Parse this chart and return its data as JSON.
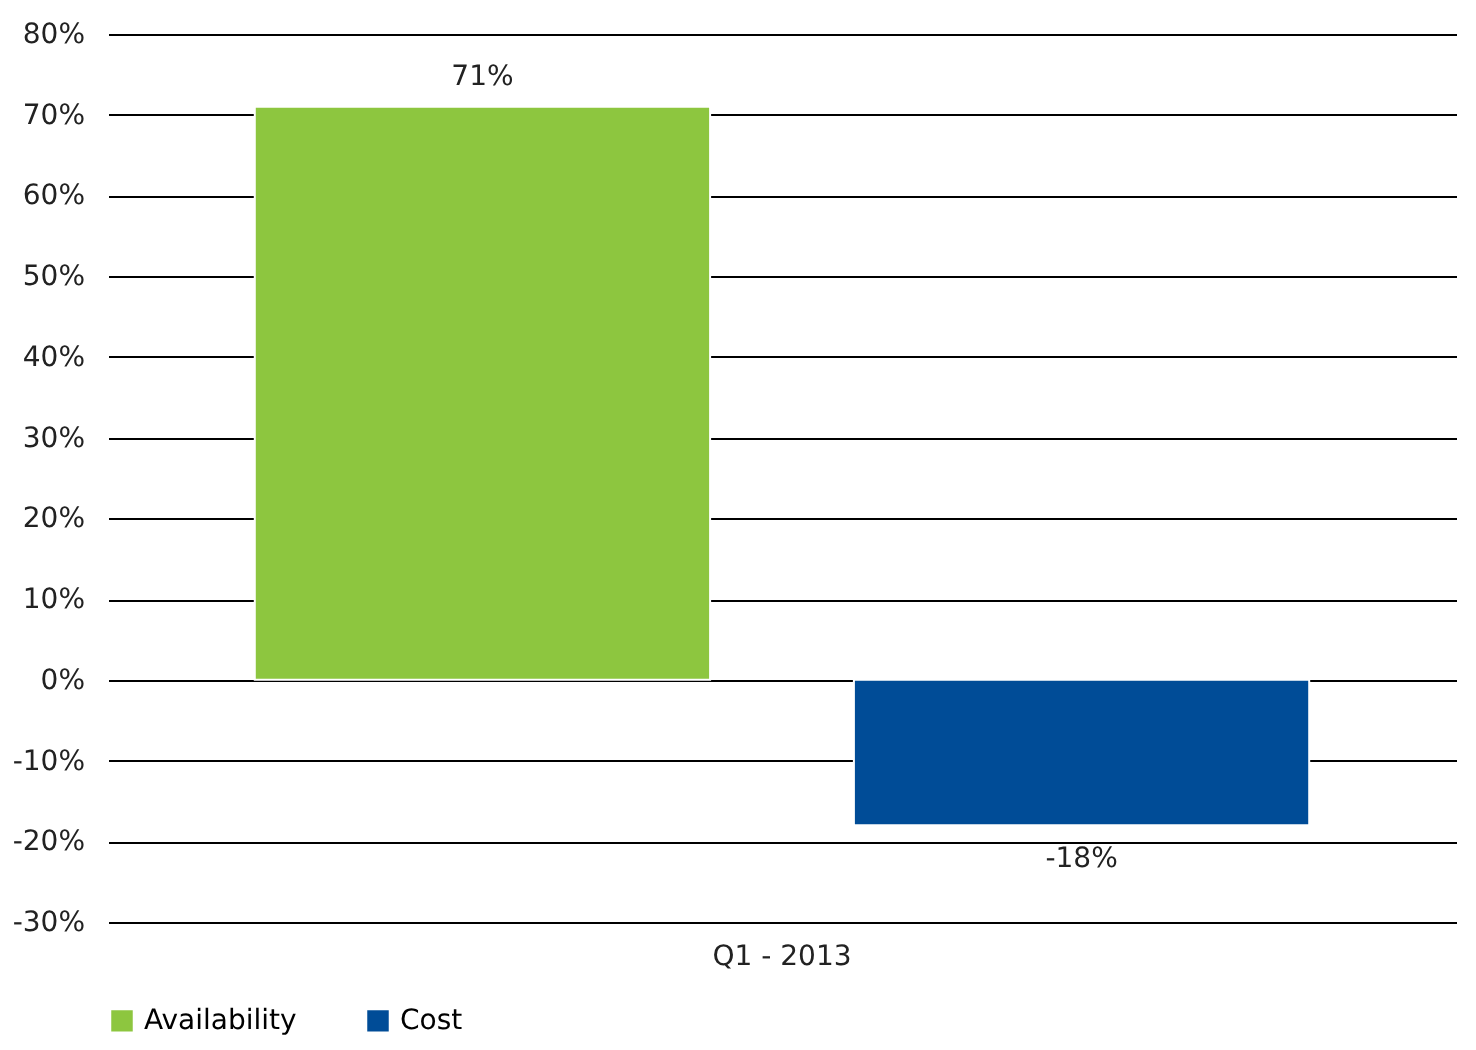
{
  "chart_data": {
    "type": "bar",
    "categories": [
      "Q1 - 2013"
    ],
    "series": [
      {
        "name": "Availability",
        "color": "#8dc63f",
        "values": [
          71
        ],
        "value_labels": [
          "71%"
        ]
      },
      {
        "name": "Cost",
        "color": "#004c97",
        "values": [
          -18
        ],
        "value_labels": [
          "-18%"
        ]
      }
    ],
    "ylim": [
      -30,
      80
    ],
    "yticks": [
      {
        "value": -30,
        "label": "-30%"
      },
      {
        "value": -20,
        "label": "-20%"
      },
      {
        "value": -10,
        "label": "-10%"
      },
      {
        "value": 0,
        "label": "0%"
      },
      {
        "value": 10,
        "label": "10%"
      },
      {
        "value": 20,
        "label": "20%"
      },
      {
        "value": 30,
        "label": "30%"
      },
      {
        "value": 40,
        "label": "40%"
      },
      {
        "value": 50,
        "label": "50%"
      },
      {
        "value": 60,
        "label": "60%"
      },
      {
        "value": 70,
        "label": "70%"
      },
      {
        "value": 80,
        "label": "80%"
      }
    ],
    "grid": "y",
    "legend": "bottom"
  }
}
